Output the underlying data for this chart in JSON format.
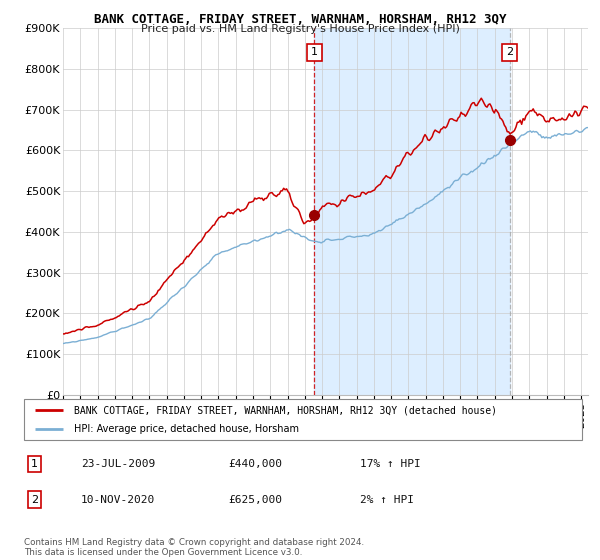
{
  "title": "BANK COTTAGE, FRIDAY STREET, WARNHAM, HORSHAM, RH12 3QY",
  "subtitle": "Price paid vs. HM Land Registry's House Price Index (HPI)",
  "ylabel_ticks": [
    "£0",
    "£100K",
    "£200K",
    "£300K",
    "£400K",
    "£500K",
    "£600K",
    "£700K",
    "£800K",
    "£900K"
  ],
  "ylim": [
    0,
    900000
  ],
  "xlim_start": 1995.0,
  "xlim_end": 2025.4,
  "sale1_x": 2009.55,
  "sale1_y": 440000,
  "sale2_x": 2020.86,
  "sale2_y": 625000,
  "legend_line1": "BANK COTTAGE, FRIDAY STREET, WARNHAM, HORSHAM, RH12 3QY (detached house)",
  "legend_line2": "HPI: Average price, detached house, Horsham",
  "table_row1": [
    "1",
    "23-JUL-2009",
    "£440,000",
    "17% ↑ HPI"
  ],
  "table_row2": [
    "2",
    "10-NOV-2020",
    "£625,000",
    "2% ↑ HPI"
  ],
  "footer": "Contains HM Land Registry data © Crown copyright and database right 2024.\nThis data is licensed under the Open Government Licence v3.0.",
  "red_color": "#cc0000",
  "blue_color": "#7bafd4",
  "shade_color": "#ddeeff",
  "vline1_color": "#cc0000",
  "vline2_color": "#aaaaaa",
  "background_color": "#ffffff"
}
